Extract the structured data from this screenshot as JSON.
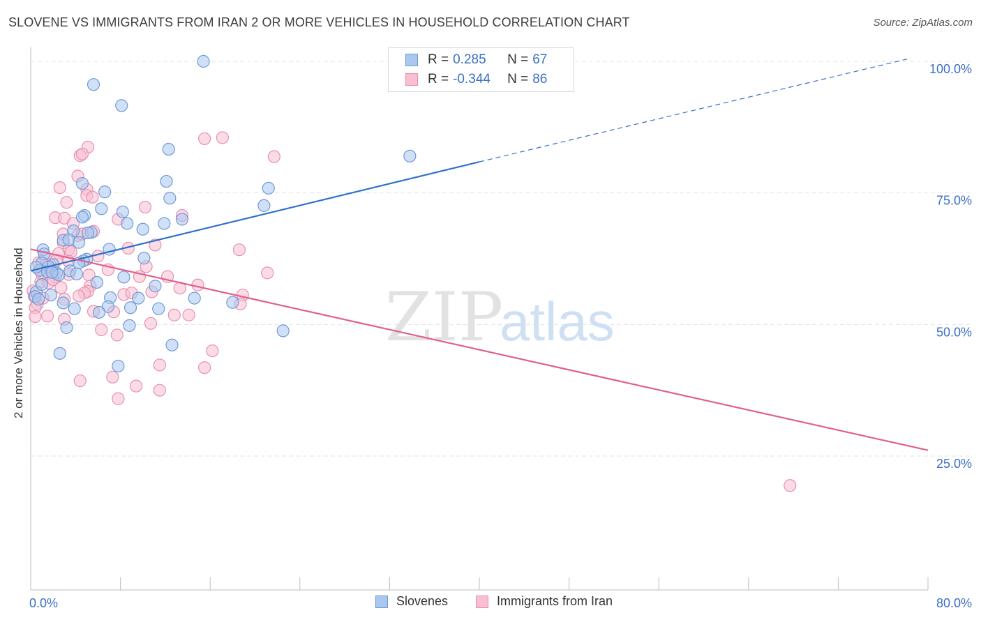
{
  "title": "SLOVENE VS IMMIGRANTS FROM IRAN 2 OR MORE VEHICLES IN HOUSEHOLD CORRELATION CHART",
  "source": "Source: ZipAtlas.com",
  "watermark": {
    "zip": "ZIP",
    "atlas": "atlas"
  },
  "legend_top": {
    "rows": [
      {
        "r_label": "R = ",
        "r_value": "0.285",
        "n_label": "N = ",
        "n_value": "67"
      },
      {
        "r_label": "R = ",
        "r_value": "-0.344",
        "n_label": "N = ",
        "n_value": "86"
      }
    ]
  },
  "legend_bottom": {
    "s1": "Slovenes",
    "s2": "Immigrants from Iran"
  },
  "colors": {
    "blue_fill": "#a9c7ef",
    "blue_stroke": "#6f9ad6",
    "blue_line": "#2f72c8",
    "pink_fill": "#f7bfd1",
    "pink_stroke": "#e98fae",
    "pink_line": "#e0608d",
    "tick_label": "#3a6fc4",
    "grid": "#e3e3e3"
  },
  "chart_data": {
    "type": "scatter",
    "title": "SLOVENE VS IMMIGRANTS FROM IRAN 2 OR MORE VEHICLES IN HOUSEHOLD CORRELATION CHART",
    "xlabel": "",
    "ylabel": "2 or more Vehicles in Household",
    "xlim": [
      0,
      80
    ],
    "ylim": [
      0,
      101
    ],
    "x_tick_labels": [
      "0.0%",
      "80.0%"
    ],
    "y_ticks": [
      25,
      50,
      75,
      100
    ],
    "y_tick_labels": [
      "25.0%",
      "50.0%",
      "75.0%",
      "100.0%"
    ],
    "grid": true,
    "legend_position": "top-center",
    "series": [
      {
        "name": "Slovenes",
        "r": 0.285,
        "n": 67,
        "trend": {
          "x0": 0,
          "y0": 60.2,
          "x1": 40,
          "y1": 80.9,
          "dashed_to_x": 80,
          "dashed_to_y": 101.5
        },
        "points": [
          [
            15.4,
            100.0
          ],
          [
            5.6,
            95.6
          ],
          [
            8.1,
            91.6
          ],
          [
            12.3,
            83.3
          ],
          [
            33.8,
            82.0
          ],
          [
            12.4,
            74.0
          ],
          [
            21.2,
            75.9
          ],
          [
            20.8,
            72.6
          ],
          [
            12.1,
            77.2
          ],
          [
            6.6,
            75.2
          ],
          [
            4.6,
            76.8
          ],
          [
            6.3,
            72.0
          ],
          [
            8.2,
            71.4
          ],
          [
            4.8,
            70.7
          ],
          [
            4.6,
            70.4
          ],
          [
            13.5,
            70.0
          ],
          [
            11.9,
            69.2
          ],
          [
            8.6,
            69.2
          ],
          [
            10.0,
            68.1
          ],
          [
            5.4,
            67.5
          ],
          [
            3.8,
            67.8
          ],
          [
            5.1,
            67.4
          ],
          [
            2.9,
            66.0
          ],
          [
            3.4,
            66.1
          ],
          [
            4.3,
            65.6
          ],
          [
            7.0,
            64.3
          ],
          [
            1.1,
            64.2
          ],
          [
            1.2,
            63.4
          ],
          [
            5.0,
            62.4
          ],
          [
            4.7,
            62.1
          ],
          [
            10.1,
            62.6
          ],
          [
            4.3,
            61.7
          ],
          [
            2.0,
            61.4
          ],
          [
            1.6,
            61.0
          ],
          [
            1.0,
            61.7
          ],
          [
            0.8,
            60.3
          ],
          [
            1.5,
            60.0
          ],
          [
            2.3,
            59.8
          ],
          [
            2.5,
            59.4
          ],
          [
            3.5,
            60.2
          ],
          [
            1.9,
            59.9
          ],
          [
            0.5,
            60.9
          ],
          [
            8.3,
            59.0
          ],
          [
            5.9,
            58.0
          ],
          [
            11.1,
            57.3
          ],
          [
            0.5,
            56.2
          ],
          [
            1.8,
            55.6
          ],
          [
            7.1,
            55.1
          ],
          [
            9.6,
            55.0
          ],
          [
            14.6,
            55.0
          ],
          [
            0.4,
            55.3
          ],
          [
            2.9,
            54.1
          ],
          [
            6.9,
            53.4
          ],
          [
            8.9,
            53.2
          ],
          [
            11.4,
            53.0
          ],
          [
            3.9,
            53.0
          ],
          [
            6.1,
            52.3
          ],
          [
            18.0,
            54.2
          ],
          [
            22.5,
            48.8
          ],
          [
            3.2,
            49.4
          ],
          [
            8.8,
            49.8
          ],
          [
            12.6,
            46.1
          ],
          [
            2.6,
            44.5
          ],
          [
            7.8,
            42.1
          ],
          [
            0.7,
            54.8
          ],
          [
            4.1,
            59.6
          ],
          [
            1.0,
            57.6
          ]
        ]
      },
      {
        "name": "Immigrants from Iran",
        "r": -0.344,
        "n": 86,
        "trend": {
          "x0": 0,
          "y0": 64.3,
          "x1": 80,
          "y1": 26.1
        },
        "points": [
          [
            17.1,
            85.5
          ],
          [
            15.5,
            85.3
          ],
          [
            5.1,
            83.7
          ],
          [
            4.4,
            82.1
          ],
          [
            21.7,
            81.9
          ],
          [
            4.6,
            82.4
          ],
          [
            4.2,
            78.2
          ],
          [
            2.6,
            76.0
          ],
          [
            5.0,
            75.7
          ],
          [
            5.0,
            74.5
          ],
          [
            5.5,
            74.2
          ],
          [
            10.2,
            72.3
          ],
          [
            3.2,
            73.2
          ],
          [
            13.5,
            70.7
          ],
          [
            2.2,
            70.3
          ],
          [
            7.8,
            70.0
          ],
          [
            3.0,
            70.2
          ],
          [
            3.8,
            69.2
          ],
          [
            5.6,
            67.7
          ],
          [
            2.9,
            67.2
          ],
          [
            4.2,
            66.9
          ],
          [
            4.6,
            67.2
          ],
          [
            2.9,
            65.5
          ],
          [
            11.1,
            65.1
          ],
          [
            8.7,
            64.5
          ],
          [
            18.6,
            64.2
          ],
          [
            3.4,
            64.2
          ],
          [
            2.5,
            63.5
          ],
          [
            3.6,
            63.8
          ],
          [
            2.3,
            62.2
          ],
          [
            3.4,
            62.0
          ],
          [
            1.7,
            61.4
          ],
          [
            0.7,
            61.7
          ],
          [
            10.3,
            61.0
          ],
          [
            1.4,
            60.9
          ],
          [
            6.9,
            60.4
          ],
          [
            5.2,
            59.4
          ],
          [
            3.4,
            59.5
          ],
          [
            12.2,
            59.1
          ],
          [
            21.1,
            59.8
          ],
          [
            1.2,
            59.4
          ],
          [
            2.2,
            59.0
          ],
          [
            9.7,
            59.1
          ],
          [
            0.9,
            58.1
          ],
          [
            1.6,
            57.9
          ],
          [
            5.3,
            57.3
          ],
          [
            14.9,
            57.5
          ],
          [
            13.3,
            56.9
          ],
          [
            5.1,
            56.3
          ],
          [
            4.8,
            56.0
          ],
          [
            10.8,
            56.2
          ],
          [
            8.3,
            55.7
          ],
          [
            4.3,
            55.4
          ],
          [
            0.3,
            55.4
          ],
          [
            18.9,
            55.6
          ],
          [
            1.1,
            55.0
          ],
          [
            0.6,
            53.9
          ],
          [
            18.7,
            53.9
          ],
          [
            0.4,
            53.2
          ],
          [
            5.6,
            52.5
          ],
          [
            7.4,
            52.4
          ],
          [
            12.8,
            51.8
          ],
          [
            14.1,
            51.8
          ],
          [
            1.5,
            51.6
          ],
          [
            0.4,
            51.5
          ],
          [
            3.0,
            51.0
          ],
          [
            10.7,
            50.2
          ],
          [
            6.3,
            49.0
          ],
          [
            7.7,
            48.0
          ],
          [
            16.2,
            45.0
          ],
          [
            11.5,
            42.3
          ],
          [
            15.5,
            41.8
          ],
          [
            7.3,
            40.0
          ],
          [
            4.4,
            39.3
          ],
          [
            9.4,
            38.3
          ],
          [
            11.5,
            37.5
          ],
          [
            7.8,
            35.9
          ],
          [
            67.7,
            19.4
          ],
          [
            0.2,
            56.4
          ],
          [
            1.3,
            62.8
          ],
          [
            1.0,
            59.6
          ],
          [
            2.0,
            58.5
          ],
          [
            3.0,
            54.8
          ],
          [
            6.0,
            63.0
          ],
          [
            2.7,
            57.0
          ],
          [
            9.0,
            56.0
          ]
        ]
      }
    ]
  }
}
